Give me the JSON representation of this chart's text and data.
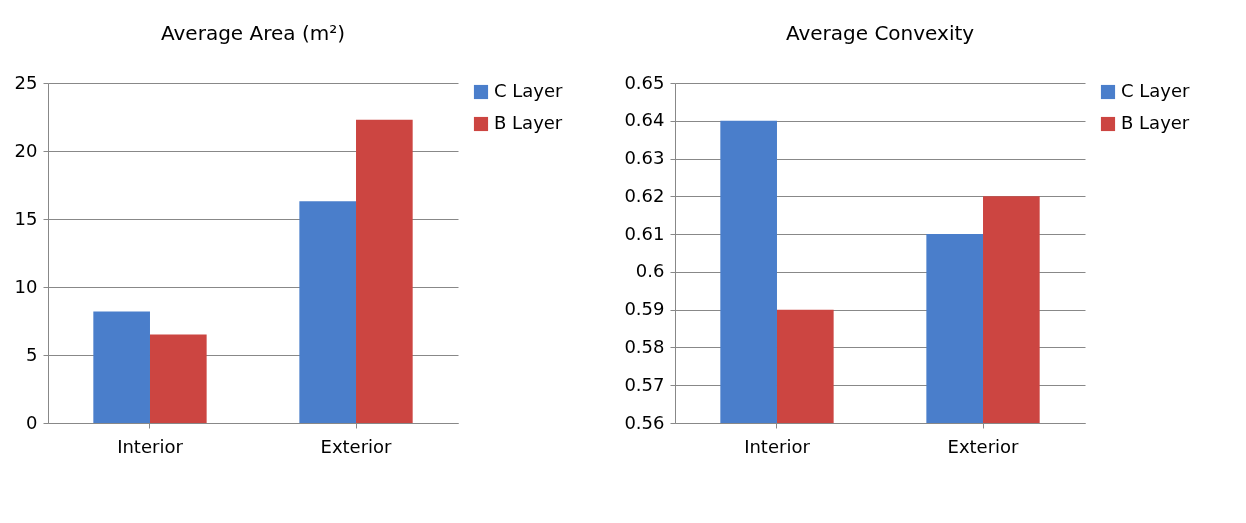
{
  "chart_data": [
    {
      "type": "bar",
      "title": "Average Area (m²)",
      "categories": [
        "Interior",
        "Exterior"
      ],
      "series": [
        {
          "name": "C Layer",
          "color": "#4a7ecb",
          "values": [
            8.2,
            16.3
          ]
        },
        {
          "name": "B Layer",
          "color": "#cc4541",
          "values": [
            6.5,
            22.3
          ]
        }
      ],
      "ylim": [
        0,
        25
      ],
      "yticks": [
        0,
        5,
        10,
        15,
        20,
        25
      ],
      "grid": "y",
      "legend": "right"
    },
    {
      "type": "bar",
      "title": "Average Convexity",
      "categories": [
        "Interior",
        "Exterior"
      ],
      "series": [
        {
          "name": "C Layer",
          "color": "#4a7ecb",
          "values": [
            0.64,
            0.61
          ]
        },
        {
          "name": "B Layer",
          "color": "#cc4541",
          "values": [
            0.59,
            0.62
          ]
        }
      ],
      "ylim": [
        0.56,
        0.65
      ],
      "yticks": [
        0.56,
        0.57,
        0.58,
        0.59,
        0.6,
        0.61,
        0.62,
        0.63,
        0.64,
        0.65
      ],
      "grid": "y",
      "legend": "right"
    }
  ]
}
